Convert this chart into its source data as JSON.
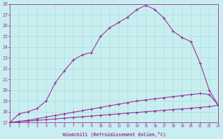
{
  "xlabel": "Windchill (Refroidissement éolien,°C)",
  "bg_color": "#c8eef0",
  "grid_color": "#aadddd",
  "line_color": "#993399",
  "xmin": 0,
  "xmax": 23,
  "ymin": 17,
  "ymax": 28,
  "line1_x": [
    0,
    1,
    2,
    3,
    4,
    5,
    6,
    7,
    8,
    9,
    10,
    11,
    12,
    13,
    14,
    15,
    16,
    17,
    18,
    19,
    20,
    21,
    22,
    23
  ],
  "line1_y": [
    17.0,
    17.07,
    17.13,
    17.2,
    17.26,
    17.33,
    17.4,
    17.47,
    17.53,
    17.6,
    17.67,
    17.73,
    17.8,
    17.87,
    17.93,
    18.0,
    18.07,
    18.13,
    18.2,
    18.26,
    18.33,
    18.4,
    18.47,
    18.6
  ],
  "line2_x": [
    0,
    1,
    2,
    3,
    4,
    5,
    6,
    7,
    8,
    9,
    10,
    11,
    12,
    13,
    14,
    15,
    16,
    17,
    18,
    19,
    20,
    21,
    22,
    23
  ],
  "line2_y": [
    17.0,
    17.1,
    17.2,
    17.35,
    17.5,
    17.65,
    17.8,
    17.95,
    18.1,
    18.25,
    18.4,
    18.55,
    18.7,
    18.85,
    19.0,
    19.1,
    19.2,
    19.3,
    19.4,
    19.5,
    19.6,
    19.7,
    19.6,
    18.6
  ],
  "line3_x": [
    0,
    1,
    2,
    3,
    4,
    5,
    6,
    7,
    8,
    9,
    10,
    11,
    12,
    13,
    14,
    15,
    16,
    17,
    18,
    19,
    20,
    21,
    22,
    23
  ],
  "line3_y": [
    17.0,
    17.8,
    18.0,
    18.3,
    19.0,
    20.7,
    21.8,
    22.8,
    23.3,
    23.5,
    25.0,
    25.8,
    26.3,
    26.8,
    27.5,
    27.9,
    27.5,
    26.7,
    25.5,
    24.9,
    24.5,
    22.5,
    20.0,
    18.6
  ]
}
